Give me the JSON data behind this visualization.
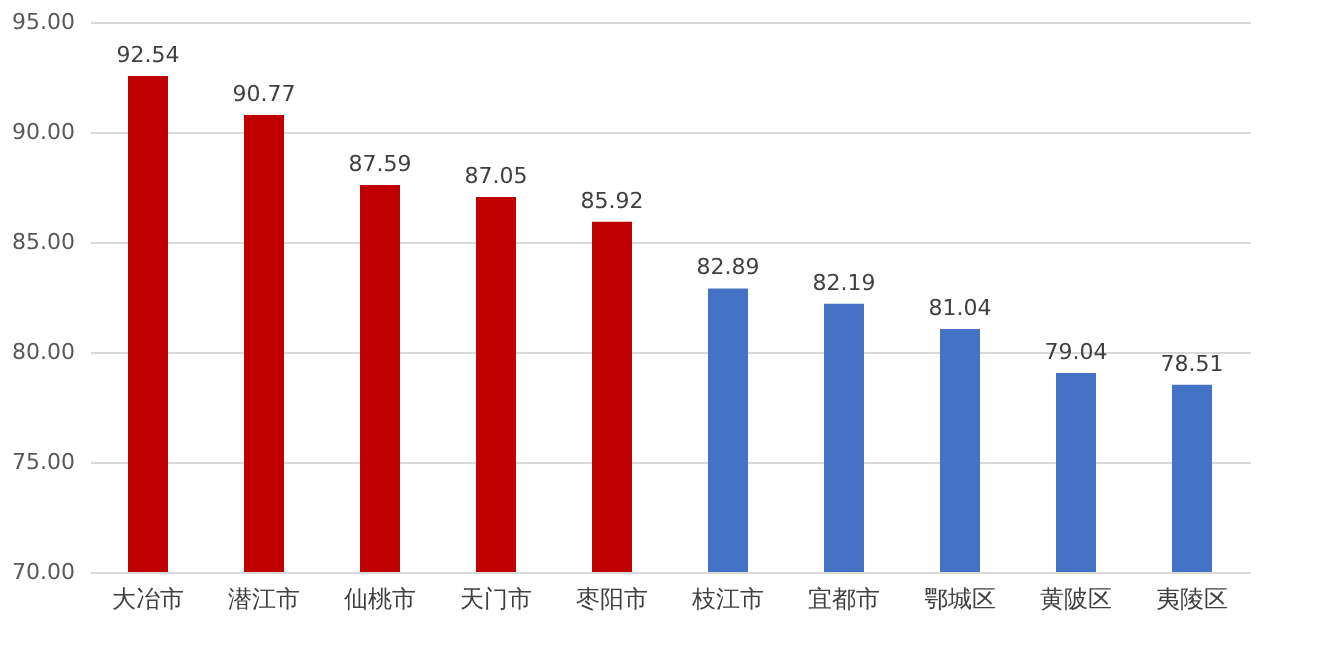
{
  "chart_data": {
    "type": "bar",
    "categories": [
      "大冶市",
      "潜江市",
      "仙桃市",
      "天门市",
      "枣阳市",
      "枝江市",
      "宜都市",
      "鄂城区",
      "黄陂区",
      "夷陵区"
    ],
    "values": [
      92.54,
      90.77,
      87.59,
      87.05,
      85.92,
      82.89,
      82.19,
      81.04,
      79.04,
      78.51
    ],
    "colors": [
      "#c00000",
      "#c00000",
      "#c00000",
      "#c00000",
      "#c00000",
      "#4472c4",
      "#4472c4",
      "#4472c4",
      "#4472c4",
      "#4472c4"
    ],
    "ylim": [
      70,
      95
    ],
    "yticks": [
      {
        "value": 70,
        "label": "70.00"
      },
      {
        "value": 75,
        "label": "75.00"
      },
      {
        "value": 80,
        "label": "80.00"
      },
      {
        "value": 85,
        "label": "85.00"
      },
      {
        "value": 90,
        "label": "90.00"
      },
      {
        "value": 95,
        "label": "95.00"
      }
    ],
    "grid": "y",
    "data_labels": true
  }
}
